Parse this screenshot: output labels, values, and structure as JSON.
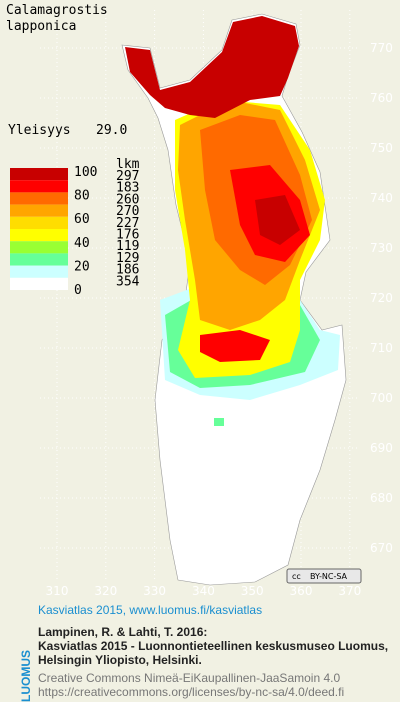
{
  "title": {
    "line1": "Calamagrostis",
    "line2": "lapponica"
  },
  "frequency": {
    "label": "Yleisyys",
    "value": "29.0"
  },
  "legend": {
    "levels": [
      100,
      80,
      60,
      40,
      20,
      0
    ],
    "count_header": "lkm",
    "classes": [
      {
        "color": "#c80000",
        "count": 297
      },
      {
        "color": "#ff0000",
        "count": 183
      },
      {
        "color": "#ff6a00",
        "count": 260
      },
      {
        "color": "#ffa500",
        "count": 270
      },
      {
        "color": "#ffdd00",
        "count": 227
      },
      {
        "color": "#ffff00",
        "count": 176
      },
      {
        "color": "#99ff33",
        "count": 119
      },
      {
        "color": "#66ff99",
        "count": 129
      },
      {
        "color": "#ccffff",
        "count": 186
      },
      {
        "color": "#ffffff",
        "count": 354
      }
    ]
  },
  "grid": {
    "northing": [
      770,
      760,
      750,
      740,
      730,
      720,
      710,
      700,
      690,
      680,
      670
    ],
    "easting": [
      310,
      320,
      330,
      340,
      350,
      360,
      370
    ]
  },
  "license_badge": "BY-NC-SA",
  "footer": {
    "brand": "LUOMUS",
    "link": "Kasviatlas 2015, www.luomus.fi/kasviatlas",
    "citation": [
      "Lampinen, R. & Lahti, T. 2016:",
      "Kasviatlas 2015 - Luonnontieteellinen keskusmuseo Luomus,",
      "Helsingin Yliopisto, Helsinki."
    ],
    "license": [
      "Creative Commons Nimeä-EiKaupallinen-JaaSamoin 4.0",
      "https://creativecommons.org/licenses/by-nc-sa/4.0/deed.fi"
    ]
  }
}
